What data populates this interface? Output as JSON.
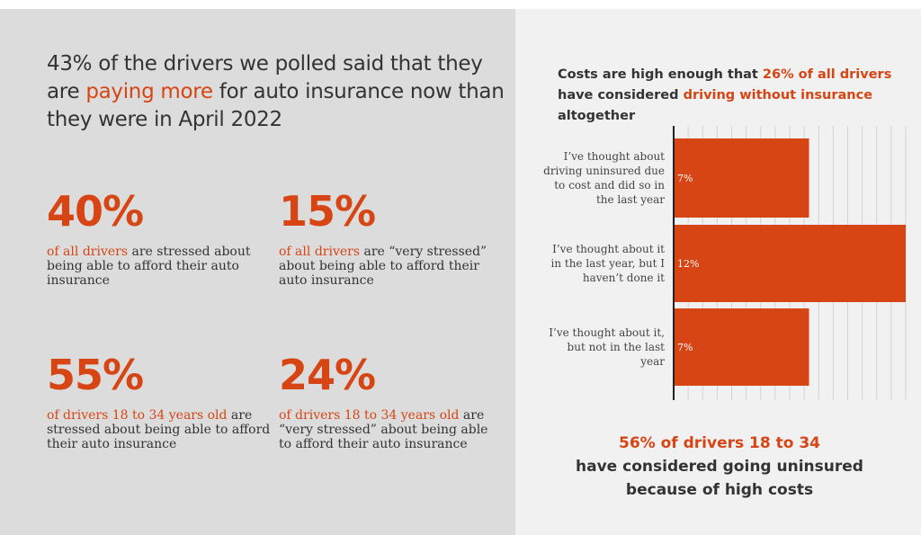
{
  "left": {
    "headline": {
      "part1": "43% of the drivers we polled said that they are ",
      "highlight": "paying more",
      "part2": " for auto insurance now than they were in April 2022"
    },
    "stats": [
      {
        "value": "40%",
        "highlight": "of all drivers",
        "rest": " are stressed about being able to afford their auto insurance"
      },
      {
        "value": "15%",
        "highlight": "of all drivers",
        "rest": " are “very stressed” about being able to afford their auto insurance"
      },
      {
        "value": "55%",
        "highlight": "of drivers 18 to 34 years old",
        "rest": " are stressed about being able to afford their auto insurance"
      },
      {
        "value": "24%",
        "highlight": "of drivers 18 to 34 years old",
        "rest": " are “very stressed” about being able to afford their auto insurance"
      }
    ]
  },
  "right": {
    "title": {
      "part1": "Costs are high enough that ",
      "highlight1": "26% of all drivers",
      "part2": " have considered ",
      "highlight2": "driving without insurance",
      "part3": " altogether"
    },
    "footer": {
      "highlight": "56% of drivers 18 to 34",
      "line2": "have considered going uninsured",
      "line3": "because of high costs"
    }
  },
  "colors": {
    "accent": "#d64513",
    "text": "#333333",
    "left_bg": "#dcdcdc",
    "right_bg": "#f1f1f1"
  },
  "chart_data": {
    "type": "bar",
    "orientation": "horizontal",
    "categories": [
      [
        "I’ve thought about",
        "driving uninsured due",
        "to cost and did so in",
        "the last year"
      ],
      [
        "I’ve thought about it",
        "in the last year, but I",
        "haven’t done it"
      ],
      [
        "I’ve thought about it,",
        "but not in the last",
        "year"
      ]
    ],
    "values": [
      7,
      12,
      7
    ],
    "value_labels": [
      "7%",
      "12%",
      "7%"
    ],
    "xlim": [
      0,
      12
    ],
    "grid": true,
    "color": "#d64513"
  }
}
